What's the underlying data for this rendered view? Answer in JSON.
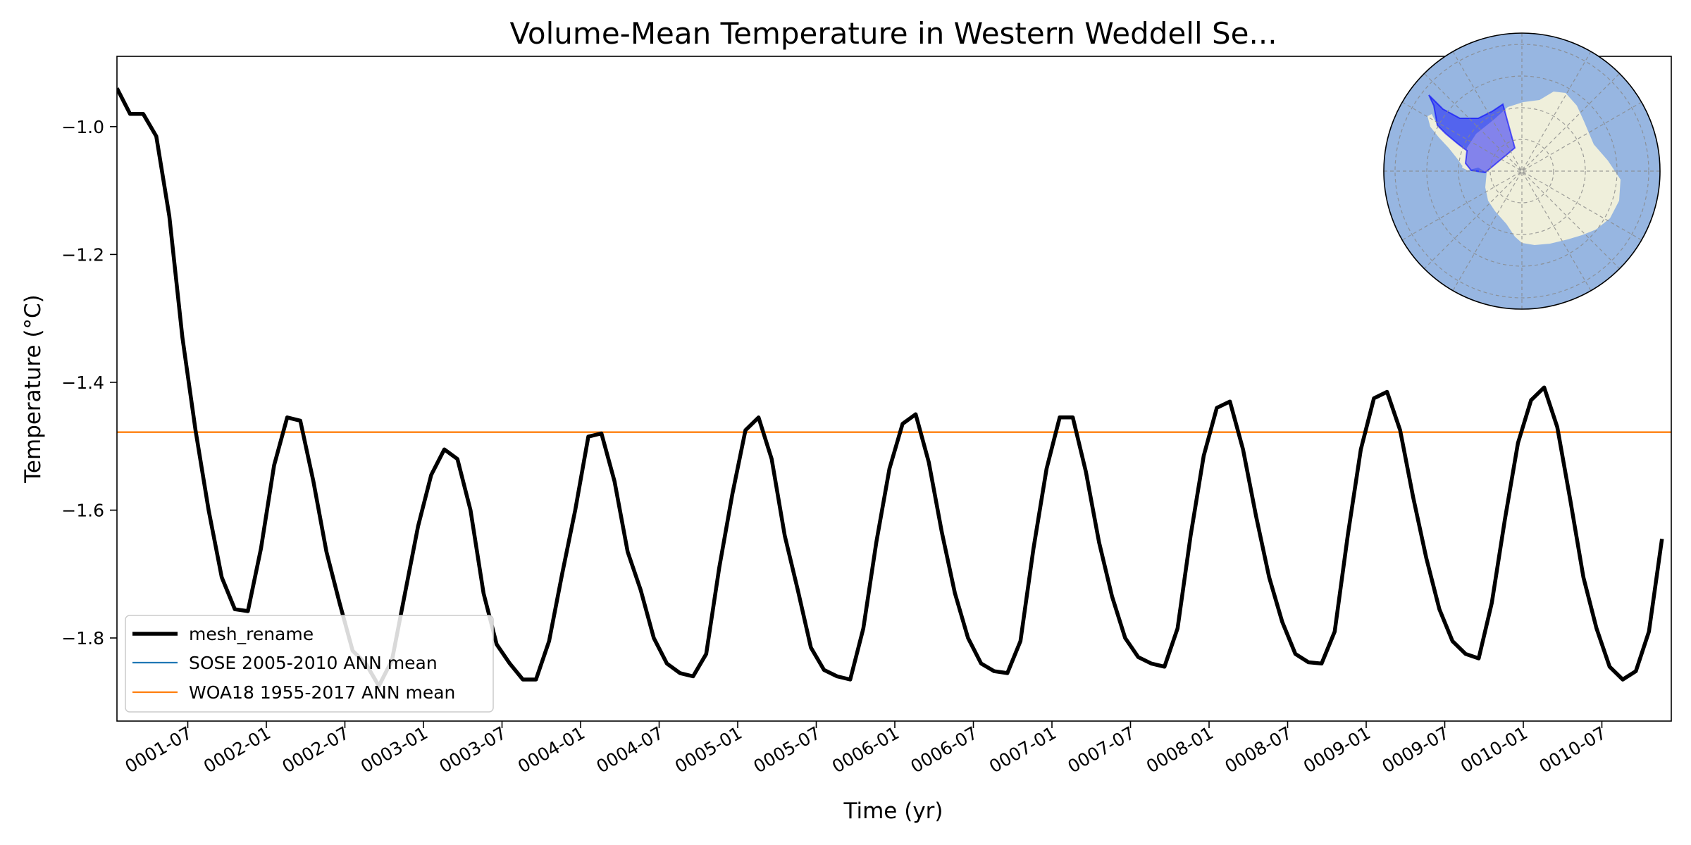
{
  "chart_data": {
    "type": "line",
    "title": "Volume-Mean Temperature in Western Weddell Se...",
    "xlabel": "Time (yr)",
    "ylabel": "Temperature (°C)",
    "ylim": [
      -1.93,
      -0.89
    ],
    "yticks": [
      -1.0,
      -1.2,
      -1.4,
      -1.6,
      -1.8
    ],
    "ytick_labels": [
      "−1.0",
      "−1.2",
      "−1.4",
      "−1.6",
      "−1.8"
    ],
    "xticks": [
      "0001-07",
      "0002-01",
      "0002-07",
      "0003-01",
      "0003-07",
      "0004-01",
      "0004-07",
      "0005-01",
      "0005-07",
      "0006-01",
      "0006-07",
      "0007-01",
      "0007-07",
      "0008-01",
      "0008-07",
      "0009-01",
      "0009-07",
      "0010-01",
      "0010-07"
    ],
    "grid": false,
    "legend_position": "lower-left",
    "legend": [
      "mesh_rename",
      "SOSE 2005-2010 ANN mean",
      "WOA18 1955-2017 ANN mean"
    ],
    "x_start": "0001-01-15",
    "x_step": "1 month",
    "series": [
      {
        "name": "mesh_rename",
        "color": "#000000",
        "values": [
          -0.94,
          -0.98,
          -0.98,
          -1.015,
          -1.14,
          -1.33,
          -1.475,
          -1.6,
          -1.705,
          -1.755,
          -1.758,
          -1.66,
          -1.53,
          -1.455,
          -1.46,
          -1.555,
          -1.665,
          -1.745,
          -1.82,
          -1.84,
          -1.875,
          -1.835,
          -1.73,
          -1.625,
          -1.545,
          -1.505,
          -1.52,
          -1.6,
          -1.73,
          -1.81,
          -1.84,
          -1.865,
          -1.865,
          -1.805,
          -1.7,
          -1.6,
          -1.485,
          -1.48,
          -1.555,
          -1.665,
          -1.725,
          -1.8,
          -1.84,
          -1.855,
          -1.86,
          -1.825,
          -1.69,
          -1.575,
          -1.475,
          -1.455,
          -1.52,
          -1.64,
          -1.725,
          -1.815,
          -1.85,
          -1.86,
          -1.865,
          -1.785,
          -1.65,
          -1.535,
          -1.465,
          -1.45,
          -1.525,
          -1.635,
          -1.73,
          -1.8,
          -1.84,
          -1.852,
          -1.855,
          -1.805,
          -1.66,
          -1.535,
          -1.455,
          -1.455,
          -1.54,
          -1.65,
          -1.735,
          -1.8,
          -1.83,
          -1.84,
          -1.845,
          -1.785,
          -1.64,
          -1.515,
          -1.44,
          -1.43,
          -1.505,
          -1.61,
          -1.705,
          -1.775,
          -1.825,
          -1.838,
          -1.84,
          -1.79,
          -1.64,
          -1.505,
          -1.425,
          -1.415,
          -1.475,
          -1.58,
          -1.675,
          -1.755,
          -1.805,
          -1.825,
          -1.832,
          -1.745,
          -1.615,
          -1.495,
          -1.428,
          -1.408,
          -1.47,
          -1.585,
          -1.705,
          -1.785,
          -1.845,
          -1.865,
          -1.852,
          -1.79,
          -1.645
        ]
      },
      {
        "name": "SOSE 2005-2010 ANN mean",
        "color": "#1f77b4",
        "values": []
      },
      {
        "name": "WOA18 1955-2017 ANN mean",
        "color": "#ff7f0e",
        "value": -1.478
      }
    ]
  },
  "inset_map": {
    "ocean_color": "#97b6e1",
    "land_color": "#efefdb",
    "region_color": "#0000ff"
  }
}
